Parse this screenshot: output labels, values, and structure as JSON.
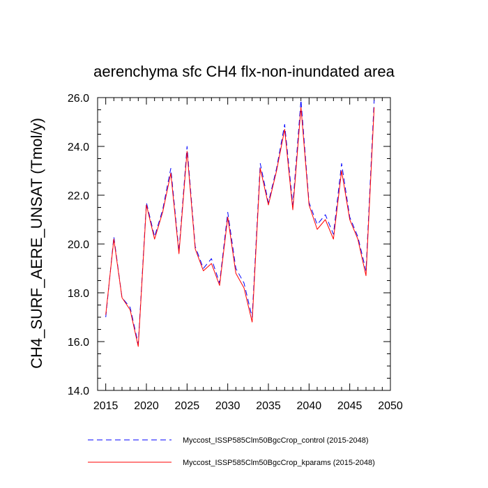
{
  "chart_data": {
    "type": "line",
    "title": "aerenchyma sfc CH4 flx-non-inundated area",
    "xlabel": "",
    "ylabel": "CH4_SURF_AERE_UNSAT  (Tmol/y)",
    "xlim": [
      2014,
      2050
    ],
    "ylim": [
      14.0,
      26.0
    ],
    "xticks": [
      2015,
      2020,
      2025,
      2030,
      2035,
      2040,
      2045,
      2050
    ],
    "xtick_labels": [
      "2015",
      "2020",
      "2025",
      "2030",
      "2035",
      "2040",
      "2045",
      "2050"
    ],
    "yticks": [
      14,
      16,
      18,
      20,
      22,
      24,
      26
    ],
    "ytick_labels": [
      "14.0",
      "16.0",
      "18.0",
      "20.0",
      "22.0",
      "24.0",
      "26.0"
    ],
    "grid": false,
    "legend_position": "bottom",
    "x": [
      2015,
      2016,
      2017,
      2018,
      2019,
      2020,
      2021,
      2022,
      2023,
      2024,
      2025,
      2026,
      2027,
      2028,
      2029,
      2030,
      2031,
      2032,
      2033,
      2034,
      2035,
      2036,
      2037,
      2038,
      2039,
      2040,
      2041,
      2042,
      2043,
      2044,
      2045,
      2046,
      2047,
      2048
    ],
    "series": [
      {
        "name": "Myccost_ISSP585Clm50BgcCrop_control (2015-2048)",
        "color": "#0000ff",
        "style": "dashed",
        "values": [
          17.0,
          20.3,
          17.8,
          17.4,
          15.9,
          21.7,
          20.3,
          21.4,
          23.1,
          19.7,
          24.0,
          19.9,
          19.0,
          19.4,
          18.4,
          21.3,
          19.0,
          18.4,
          17.0,
          23.3,
          21.7,
          23.1,
          24.9,
          21.6,
          25.9,
          21.7,
          20.8,
          21.2,
          20.4,
          23.3,
          21.1,
          20.3,
          18.9,
          25.9
        ]
      },
      {
        "name": "Myccost_ISSP585Clm50BgcCrop_kparams (2015-2048)",
        "color": "#ff0000",
        "style": "solid",
        "values": [
          17.1,
          20.2,
          17.8,
          17.3,
          15.8,
          21.6,
          20.2,
          21.3,
          22.9,
          19.6,
          23.8,
          19.8,
          18.9,
          19.2,
          18.3,
          21.1,
          18.8,
          18.2,
          16.8,
          23.1,
          21.6,
          23.0,
          24.7,
          21.4,
          25.6,
          21.6,
          20.6,
          21.0,
          20.2,
          23.0,
          21.0,
          20.2,
          18.7,
          25.6
        ]
      }
    ]
  }
}
